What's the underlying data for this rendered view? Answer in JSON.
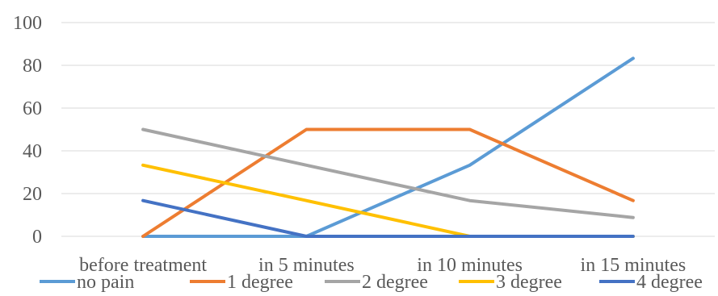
{
  "chart_data": {
    "type": "line",
    "title": "",
    "xlabel": "",
    "ylabel": "",
    "categories": [
      "before treatment",
      "in 5 minutes",
      "in 10 minutes",
      "in 15 minutes"
    ],
    "ylim": [
      0,
      100
    ],
    "yticks": [
      0,
      20,
      40,
      60,
      80,
      100
    ],
    "grid": true,
    "legend_position": "bottom",
    "series": [
      {
        "name": "no pain",
        "color": "#5B9BD5",
        "values": [
          0,
          0,
          33.3,
          83.3
        ]
      },
      {
        "name": "1 degree",
        "color": "#ED7D31",
        "values": [
          0,
          50,
          50,
          16.7
        ]
      },
      {
        "name": "2 degree",
        "color": "#A5A5A5",
        "values": [
          50,
          33.3,
          16.7,
          8.8
        ]
      },
      {
        "name": "3 degree",
        "color": "#FFC000",
        "values": [
          33.3,
          16.7,
          0,
          0
        ]
      },
      {
        "name": "4 degree",
        "color": "#4472C4",
        "values": [
          16.7,
          0,
          0,
          0
        ]
      }
    ]
  }
}
